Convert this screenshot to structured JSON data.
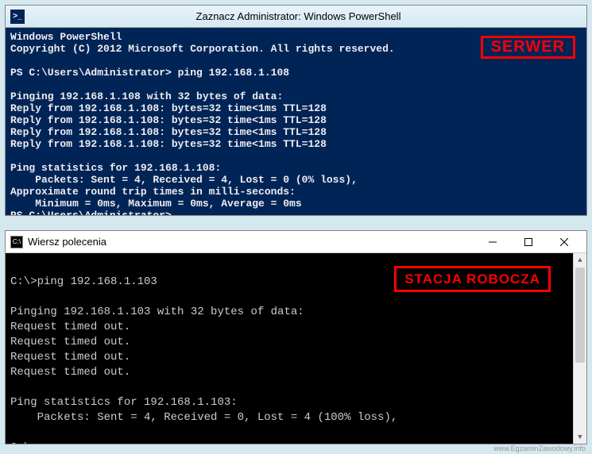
{
  "powershell": {
    "title": "Zaznacz Administrator: Windows PowerShell",
    "icon_glyph": ">_",
    "badge": "SERWER",
    "colors": {
      "bg": "#012456",
      "fg": "#eeedf0"
    },
    "lines": [
      "Windows PowerShell",
      "Copyright (C) 2012 Microsoft Corporation. All rights reserved.",
      "",
      "PS C:\\Users\\Administrator> ping 192.168.1.108",
      "",
      "Pinging 192.168.1.108 with 32 bytes of data:",
      "Reply from 192.168.1.108: bytes=32 time<1ms TTL=128",
      "Reply from 192.168.1.108: bytes=32 time<1ms TTL=128",
      "Reply from 192.168.1.108: bytes=32 time<1ms TTL=128",
      "Reply from 192.168.1.108: bytes=32 time<1ms TTL=128",
      "",
      "Ping statistics for 192.168.1.108:",
      "    Packets: Sent = 4, Received = 4, Lost = 0 (0% loss),",
      "Approximate round trip times in milli-seconds:",
      "    Minimum = 0ms, Maximum = 0ms, Average = 0ms",
      "PS C:\\Users\\Administrator>"
    ]
  },
  "cmd": {
    "title": "Wiersz polecenia",
    "icon_glyph": "C:\\",
    "badge": "STACJA ROBOCZA",
    "colors": {
      "bg": "#000000",
      "fg": "#cccccc"
    },
    "lines": [
      "",
      "C:\\>ping 192.168.1.103",
      "",
      "Pinging 192.168.1.103 with 32 bytes of data:",
      "Request timed out.",
      "Request timed out.",
      "Request timed out.",
      "Request timed out.",
      "",
      "Ping statistics for 192.168.1.103:",
      "    Packets: Sent = 4, Received = 0, Lost = 4 (100% loss),",
      "",
      "C:\\>"
    ]
  },
  "watermark": "www.EgzaminZawodowy.info",
  "badge_color": "#ff0000"
}
